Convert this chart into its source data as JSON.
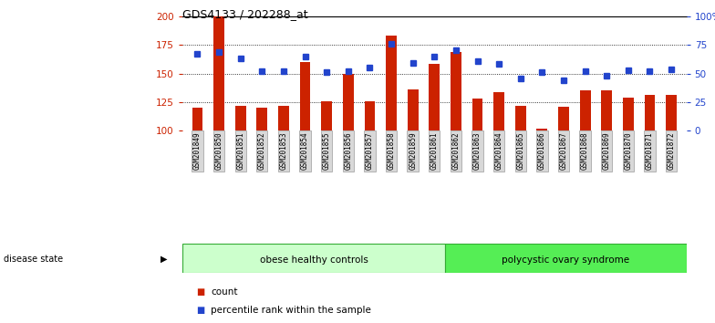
{
  "title": "GDS4133 / 202288_at",
  "samples": [
    "GSM201849",
    "GSM201850",
    "GSM201851",
    "GSM201852",
    "GSM201853",
    "GSM201854",
    "GSM201855",
    "GSM201856",
    "GSM201857",
    "GSM201858",
    "GSM201859",
    "GSM201861",
    "GSM201862",
    "GSM201863",
    "GSM201864",
    "GSM201865",
    "GSM201866",
    "GSM201867",
    "GSM201868",
    "GSM201869",
    "GSM201870",
    "GSM201871",
    "GSM201872"
  ],
  "counts": [
    120,
    200,
    122,
    120,
    122,
    160,
    126,
    150,
    126,
    183,
    136,
    158,
    169,
    128,
    134,
    122,
    102,
    121,
    135,
    135,
    129,
    131,
    131
  ],
  "percentiles": [
    67,
    69,
    63,
    52,
    52,
    65,
    51,
    52,
    55,
    76,
    59,
    65,
    70,
    61,
    58,
    46,
    51,
    44,
    52,
    48,
    53,
    52,
    54
  ],
  "group1_label": "obese healthy controls",
  "group2_label": "polycystic ovary syndrome",
  "group1_count": 12,
  "bar_color": "#cc2200",
  "dot_color": "#2244cc",
  "ylim_left": [
    100,
    200
  ],
  "ylim_right": [
    0,
    100
  ],
  "yticks_left": [
    100,
    125,
    150,
    175,
    200
  ],
  "yticks_right": [
    0,
    25,
    50,
    75,
    100
  ],
  "ytick_labels_right": [
    "0",
    "25",
    "50",
    "75",
    "100%"
  ],
  "bar_width": 0.5,
  "group_bg1": "#ccffcc",
  "group_bg2": "#55ee55",
  "group_border": "#33aa33",
  "legend_count_label": "count",
  "legend_pct_label": "percentile rank within the sample",
  "hgrid_levels": [
    125,
    150,
    175
  ],
  "title_fontsize": 9,
  "tick_fontsize": 7.5,
  "label_fontsize": 8
}
